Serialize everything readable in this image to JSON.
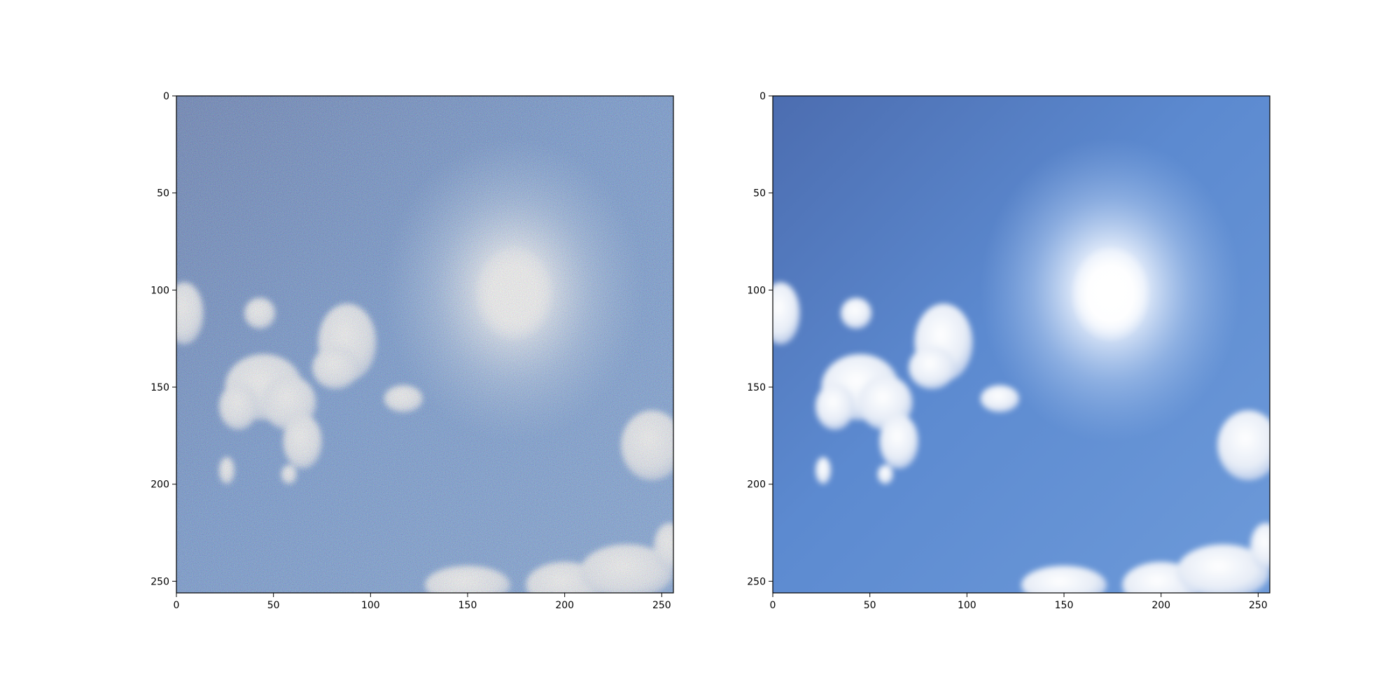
{
  "figure": {
    "background": "#ffffff",
    "panels": [
      {
        "id": "noisy",
        "description_key": "noisy-sky-image",
        "noise": true,
        "x_ticks": [
          {
            "value": 0,
            "label": "0"
          },
          {
            "value": 50,
            "label": "50"
          },
          {
            "value": 100,
            "label": "100"
          },
          {
            "value": 150,
            "label": "150"
          },
          {
            "value": 200,
            "label": "200"
          },
          {
            "value": 250,
            "label": "250"
          }
        ],
        "y_ticks": [
          {
            "value": 0,
            "label": "0"
          },
          {
            "value": 50,
            "label": "50"
          },
          {
            "value": 100,
            "label": "100"
          },
          {
            "value": 150,
            "label": "150"
          },
          {
            "value": 200,
            "label": "200"
          },
          {
            "value": 250,
            "label": "250"
          }
        ]
      },
      {
        "id": "denoised",
        "description_key": "denoised-sky-image",
        "noise": false,
        "x_ticks": [
          {
            "value": 0,
            "label": "0"
          },
          {
            "value": 50,
            "label": "50"
          },
          {
            "value": 100,
            "label": "100"
          },
          {
            "value": 150,
            "label": "150"
          },
          {
            "value": 200,
            "label": "200"
          },
          {
            "value": 250,
            "label": "250"
          }
        ],
        "y_ticks": [
          {
            "value": 0,
            "label": "0"
          },
          {
            "value": 50,
            "label": "50"
          },
          {
            "value": 100,
            "label": "100"
          },
          {
            "value": 150,
            "label": "150"
          },
          {
            "value": 200,
            "label": "200"
          },
          {
            "value": 250,
            "label": "250"
          }
        ]
      }
    ],
    "image_extent": [
      0,
      256
    ],
    "colors": {
      "sky_dark": "#4a6fb8",
      "sky_mid": "#5b87cf",
      "sky_light": "#8fb3e6",
      "cloud": "#f2f4f8",
      "sun": "#ffffff",
      "axis": "#000000"
    }
  }
}
